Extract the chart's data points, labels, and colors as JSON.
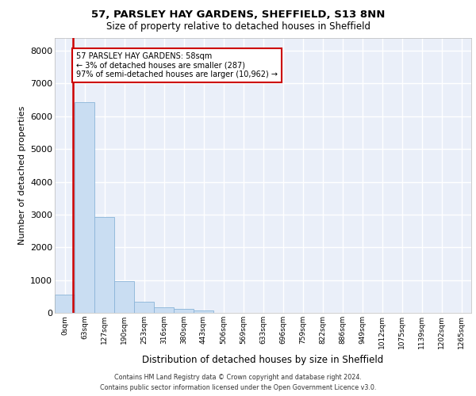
{
  "title1": "57, PARSLEY HAY GARDENS, SHEFFIELD, S13 8NN",
  "title2": "Size of property relative to detached houses in Sheffield",
  "xlabel": "Distribution of detached houses by size in Sheffield",
  "ylabel": "Number of detached properties",
  "bar_labels": [
    "0sqm",
    "63sqm",
    "127sqm",
    "190sqm",
    "253sqm",
    "316sqm",
    "380sqm",
    "443sqm",
    "506sqm",
    "569sqm",
    "633sqm",
    "696sqm",
    "759sqm",
    "822sqm",
    "886sqm",
    "949sqm",
    "1012sqm",
    "1075sqm",
    "1139sqm",
    "1202sqm",
    "1265sqm"
  ],
  "bar_values": [
    550,
    6430,
    2920,
    970,
    340,
    160,
    110,
    75,
    0,
    0,
    0,
    0,
    0,
    0,
    0,
    0,
    0,
    0,
    0,
    0,
    0
  ],
  "bar_color": "#c9ddf2",
  "bar_edge_color": "#8ab4d8",
  "annotation_title": "57 PARSLEY HAY GARDENS: 58sqm",
  "annotation_line1": "← 3% of detached houses are smaller (287)",
  "annotation_line2": "97% of semi-detached houses are larger (10,962) →",
  "vline_color": "#cc0000",
  "annotation_box_edge": "#cc0000",
  "ylim": [
    0,
    8400
  ],
  "yticks": [
    0,
    1000,
    2000,
    3000,
    4000,
    5000,
    6000,
    7000,
    8000
  ],
  "footer1": "Contains HM Land Registry data © Crown copyright and database right 2024.",
  "footer2": "Contains public sector information licensed under the Open Government Licence v3.0.",
  "bg_color": "#eaeff9",
  "grid_color": "#ffffff"
}
